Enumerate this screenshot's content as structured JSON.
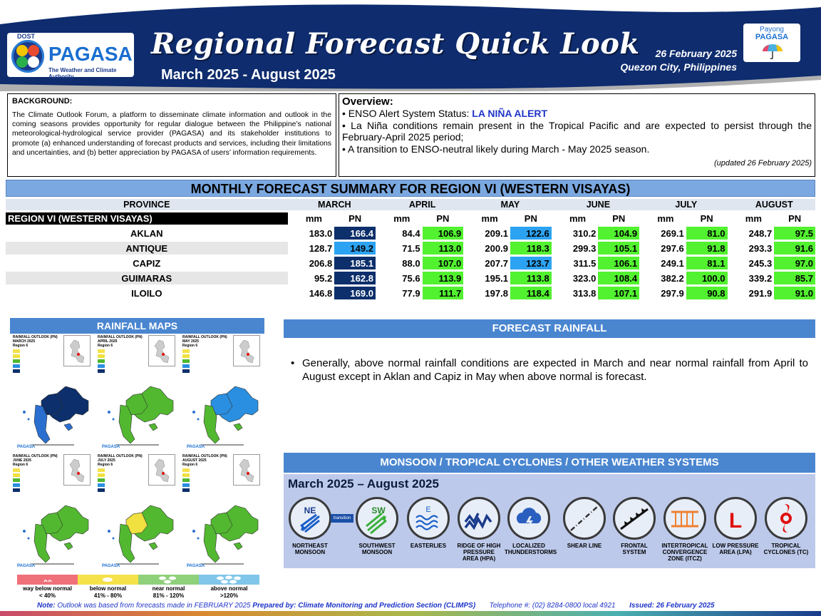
{
  "header": {
    "dost": "DOST",
    "agency": "PAGASA",
    "tagline": "The Weather and Climate Authority",
    "title": "Regional Forecast Quick Look",
    "period": "March 2025 - August 2025",
    "date": "26 February 2025",
    "place": "Quezon City, Philippines",
    "payong_line1": "Payong",
    "payong_line2": "PAGASA"
  },
  "background": {
    "heading": "BACKGROUND:",
    "text": "The Climate Outlook Forum, a platform to disseminate climate information and outlook in the coming seasons provides opportunity for regular dialogue between the Philippine’s national meteorological-hydrological service provider (PAGASA) and its stakeholder institutions to promote (a) enhanced understanding of forecast products and services, including their limitations and uncertainties, and (b) better appreciation by PAGASA of users’ information requirements."
  },
  "overview": {
    "heading": "Overview:",
    "enso_label": "• ENSO Alert System Status: ",
    "enso_status": "LA NIÑA ALERT",
    "line2": "• La Niña conditions remain present in the Tropical Pacific and are expected to persist through the February-April 2025 period;",
    "line3": "• A transition to ENSO-neutral likely during March - May 2025 season.",
    "updated": "(updated 26 February 2025)"
  },
  "table": {
    "title": "MONTHLY FORECAST SUMMARY FOR REGION VI (WESTERN VISAYAS)",
    "province_header": "PROVINCE",
    "region_label": "REGION VI (WESTERN VISAYAS)",
    "months": [
      "MARCH",
      "APRIL",
      "MAY",
      "JUNE",
      "JULY",
      "AUGUST"
    ],
    "mm_label": "mm",
    "pn_label": "PN",
    "rows": [
      {
        "province": "AKLAN",
        "values": [
          "183.0",
          "166.4",
          "84.4",
          "106.9",
          "209.1",
          "122.6",
          "310.2",
          "104.9",
          "269.1",
          "81.0",
          "248.7",
          "97.5"
        ]
      },
      {
        "province": "ANTIQUE",
        "values": [
          "128.7",
          "149.2",
          "71.5",
          "113.0",
          "200.9",
          "118.3",
          "299.3",
          "105.1",
          "297.6",
          "91.8",
          "293.3",
          "91.6"
        ]
      },
      {
        "province": "CAPIZ",
        "values": [
          "206.8",
          "185.1",
          "88.0",
          "107.0",
          "207.7",
          "123.7",
          "311.5",
          "106.1",
          "249.1",
          "81.1",
          "245.3",
          "97.0"
        ]
      },
      {
        "province": "GUIMARAS",
        "values": [
          "95.2",
          "162.8",
          "75.6",
          "113.9",
          "195.1",
          "113.8",
          "323.0",
          "108.4",
          "382.2",
          "100.0",
          "339.2",
          "85.7"
        ]
      },
      {
        "province": "ILOILO",
        "values": [
          "146.8",
          "169.0",
          "77.9",
          "111.7",
          "197.8",
          "118.4",
          "313.8",
          "107.1",
          "297.9",
          "90.8",
          "291.9",
          "91.0"
        ]
      }
    ],
    "pn_classes": [
      [
        "dark",
        "green",
        "light",
        "green",
        "green",
        "green"
      ],
      [
        "light",
        "green",
        "green",
        "green",
        "green",
        "green"
      ],
      [
        "dark",
        "green",
        "light",
        "green",
        "green",
        "green"
      ],
      [
        "dark",
        "green",
        "green",
        "green",
        "green",
        "green"
      ],
      [
        "dark",
        "green",
        "green",
        "green",
        "green",
        "green"
      ]
    ],
    "colors": {
      "above_normal": "#0d2f6b",
      "above_normal_light": "#2ca3f2",
      "near_normal": "#52f230"
    }
  },
  "rainfall_maps": {
    "title": "RAINFALL MAPS",
    "maps": [
      {
        "hd1": "RAINFALL OUTLOOK (PN)",
        "hd2": "MARCH 2025",
        "hd3": "Region 6"
      },
      {
        "hd1": "RAINFALL OUTLOOK (PN)",
        "hd2": "APRIL 2025",
        "hd3": "Region 6"
      },
      {
        "hd1": "RAINFALL OUTLOOK (PN)",
        "hd2": "MAY 2025",
        "hd3": "Region 6"
      },
      {
        "hd1": "RAINFALL OUTLOOK (PN)",
        "hd2": "JUNE 2025",
        "hd3": "Region 6"
      },
      {
        "hd1": "RAINFALL OUTLOOK (PN)",
        "hd2": "JULY 2025",
        "hd3": "Region 6"
      },
      {
        "hd1": "RAINFALL OUTLOOK (PN)",
        "hd2": "AUGUST 2025",
        "hd3": "Region 6"
      }
    ],
    "legend": [
      {
        "label1": "way below normal",
        "label2": "< 40%",
        "color": "#f0707a"
      },
      {
        "label1": "below normal",
        "label2": "41% - 80%",
        "color": "#f5e14a"
      },
      {
        "label1": "near normal",
        "label2": "81% - 120%",
        "color": "#8fd07a"
      },
      {
        "label1": "above normal",
        "label2": ">120%",
        "color": "#7fc6ea"
      }
    ]
  },
  "forecast_rainfall": {
    "title": "FORECAST RAINFALL",
    "bullet": "•",
    "text": "Generally, above normal rainfall conditions are expected in March and near normal rainfall from April to August except in Aklan and Capiz in May when above normal is forecast."
  },
  "weather_systems": {
    "title": "MONSOON / TROPICAL CYCLONES / OTHER WEATHER SYSTEMS",
    "period": "March 2025 – August 2025",
    "items": [
      {
        "label": "NORTHEAST MONSOON",
        "icon": "northeast-monsoon-icon",
        "glyph": "NE"
      },
      {
        "label": "SOUTHWEST MONSOON",
        "icon": "southwest-monsoon-icon",
        "glyph": "SW",
        "note": "transition"
      },
      {
        "label": "EASTERLIES",
        "icon": "easterlies-icon",
        "glyph": "E"
      },
      {
        "label": "RIDGE OF HIGH PRESSURE AREA (HPA)",
        "icon": "ridge-hpa-icon",
        "glyph": ""
      },
      {
        "label": "LOCALIZED THUNDERSTORMS",
        "icon": "thunderstorm-icon",
        "glyph": ""
      },
      {
        "label": "SHEAR LINE",
        "icon": "shear-line-icon",
        "glyph": ""
      },
      {
        "label": "FRONTAL SYSTEM",
        "icon": "frontal-system-icon",
        "glyph": ""
      },
      {
        "label": "INTERTROPICAL CONVERGENCE ZONE (ITCZ)",
        "icon": "itcz-icon",
        "glyph": ""
      },
      {
        "label": "LOW PRESSURE AREA (LPA)",
        "icon": "lpa-icon",
        "glyph": "L"
      },
      {
        "label": "TROPICAL CYCLONES (TC)",
        "icon": "tropical-cyclone-icon",
        "glyph": ""
      }
    ]
  },
  "footer": {
    "note_label": "Note:",
    "note_text": " Outlook was based from forecasts made in FEBRUARY 2025 ",
    "prepared": "Prepared by: Climate Monitoring and Prediction Section (CLIMPS)",
    "telephone": "Telephone #: (02) 8284-0800 local 4921",
    "issued": "Issued: 26 February 2025"
  }
}
